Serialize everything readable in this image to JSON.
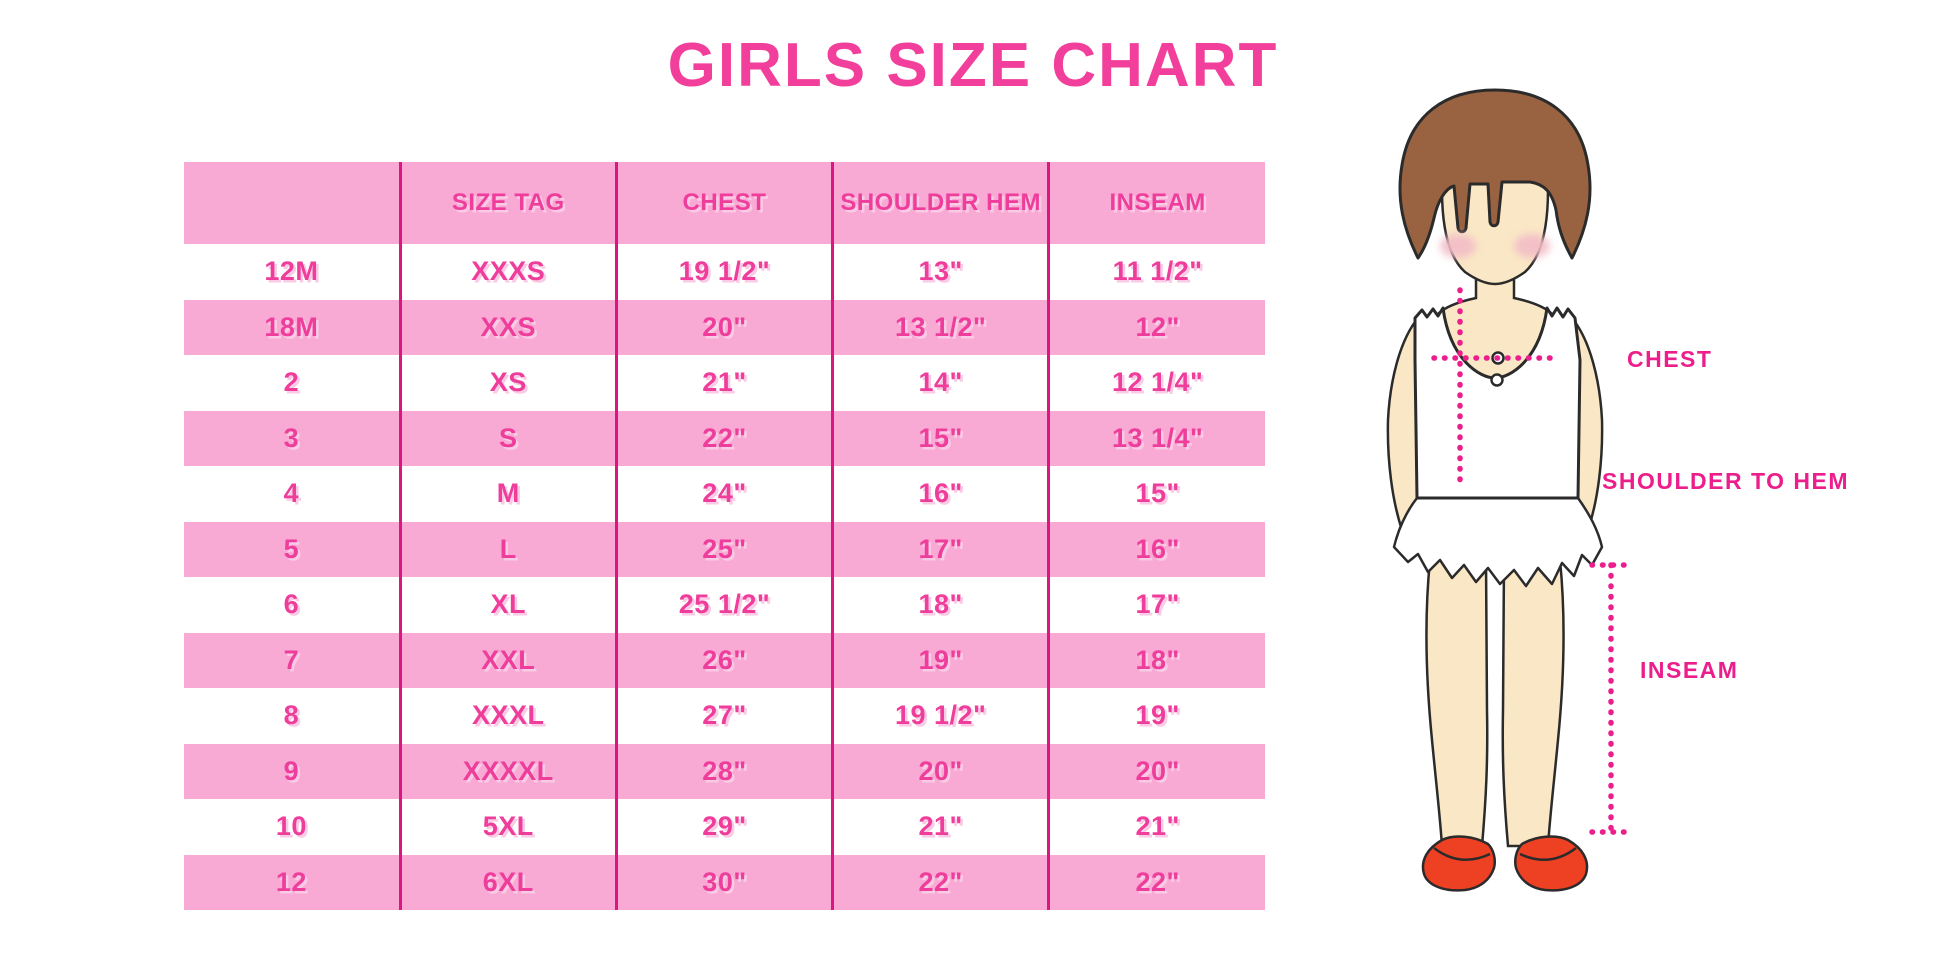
{
  "title": "GIRLS SIZE CHART",
  "chart_data": {
    "type": "table",
    "title": "GIRLS SIZE CHART",
    "columns": [
      "",
      "SIZE TAG",
      "CHEST",
      "SHOULDER HEM",
      "INSEAM"
    ],
    "rows": [
      [
        "12M",
        "XXXS",
        "19 1/2\"",
        "13\"",
        "11 1/2\""
      ],
      [
        "18M",
        "XXS",
        "20\"",
        "13 1/2\"",
        "12\""
      ],
      [
        "2",
        "XS",
        "21\"",
        "14\"",
        "12 1/4\""
      ],
      [
        "3",
        "S",
        "22\"",
        "15\"",
        "13 1/4\""
      ],
      [
        "4",
        "M",
        "24\"",
        "16\"",
        "15\""
      ],
      [
        "5",
        "L",
        "25\"",
        "17\"",
        "16\""
      ],
      [
        "6",
        "XL",
        "25 1/2\"",
        "18\"",
        "17\""
      ],
      [
        "7",
        "XXL",
        "26\"",
        "19\"",
        "18\""
      ],
      [
        "8",
        "XXXL",
        "27\"",
        "19 1/2\"",
        "19\""
      ],
      [
        "9",
        "XXXXL",
        "28\"",
        "20\"",
        "20\""
      ],
      [
        "10",
        "5XL",
        "29\"",
        "21\"",
        "21\""
      ],
      [
        "12",
        "6XL",
        "30\"",
        "22\"",
        "22\""
      ]
    ],
    "layout_hints": {
      "row_striping": "header and even data rows pink, odd data rows white",
      "column_dividers": "vertical dark-pink rules between all 5 columns"
    }
  },
  "figure": {
    "description": "girl-illustration",
    "labels": {
      "chest": "CHEST",
      "shoulder_to_hem": "SHOULDER TO HEM",
      "inseam": "INSEAM"
    }
  },
  "colors": {
    "title_pink": "#F23F9B",
    "row_pink": "#F8A9D4",
    "text_pink": "#EE3D9B",
    "divider_pink": "#DD1581",
    "dotted_line": "#EC1E8C",
    "hair_brown": "#996341",
    "skin": "#FAE7C5",
    "blush": "#F2BCC6",
    "shoe_red": "#EE4023"
  }
}
